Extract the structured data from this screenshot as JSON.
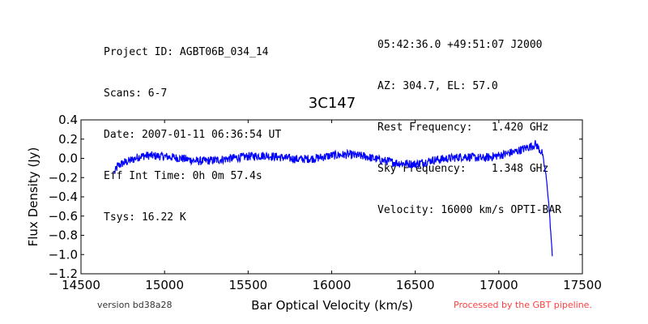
{
  "header_left": [
    "Project ID: AGBT06B_034_14",
    "Scans: 6-7",
    "Date: 2007-01-11 06:36:54 UT",
    "Eff Int Time: 0h 0m 57.4s",
    "Tsys: 16.22 K"
  ],
  "header_right": [
    "05:42:36.0 +49:51:07 J2000",
    "AZ: 304.7, EL: 57.0",
    "Rest Frequency:   1.420 GHz",
    "Sky Frequency:    1.348 GHz",
    "Velocity: 16000 km/s OPTI-BAR"
  ],
  "footer": {
    "version": "version bd38a28",
    "processed": "Processed by the GBT pipeline."
  },
  "chart_data": {
    "type": "line",
    "title": "3C147",
    "xlabel": "Bar Optical Velocity (km/s)",
    "ylabel": "Flux Density (Jy)",
    "xlim": [
      14500,
      17500
    ],
    "ylim": [
      -1.2,
      0.4
    ],
    "xticks": [
      "14500",
      "15000",
      "15500",
      "16000",
      "16500",
      "17000",
      "17500"
    ],
    "yticks": [
      "0.4",
      "0.2",
      "0.0",
      "−0.2",
      "−0.4",
      "−0.6",
      "−0.8",
      "−1.0",
      "−1.2"
    ],
    "grid": false,
    "color": "#0000ff",
    "series": [
      {
        "x": [
          14700,
          14720,
          14750,
          14800,
          14850,
          14900,
          15000,
          15100,
          15200,
          15300,
          15400,
          15500,
          15600,
          15700,
          15800,
          15900,
          16000,
          16100,
          16200,
          16300,
          16400,
          16500,
          16600,
          16700,
          16800,
          16900,
          17000,
          17100,
          17150,
          17200,
          17220,
          17240,
          17260,
          17270,
          17280,
          17290,
          17300,
          17310,
          17320
        ],
        "y": [
          -0.15,
          -0.08,
          -0.05,
          -0.02,
          0.02,
          0.03,
          0.02,
          0.0,
          -0.03,
          -0.02,
          0.0,
          0.02,
          0.03,
          0.01,
          -0.01,
          0.0,
          0.03,
          0.04,
          0.02,
          -0.02,
          -0.05,
          -0.06,
          -0.02,
          0.0,
          0.02,
          0.0,
          0.03,
          0.07,
          0.1,
          0.13,
          0.15,
          0.1,
          0.05,
          -0.05,
          -0.15,
          -0.3,
          -0.5,
          -0.75,
          -1.02
        ]
      }
    ]
  }
}
